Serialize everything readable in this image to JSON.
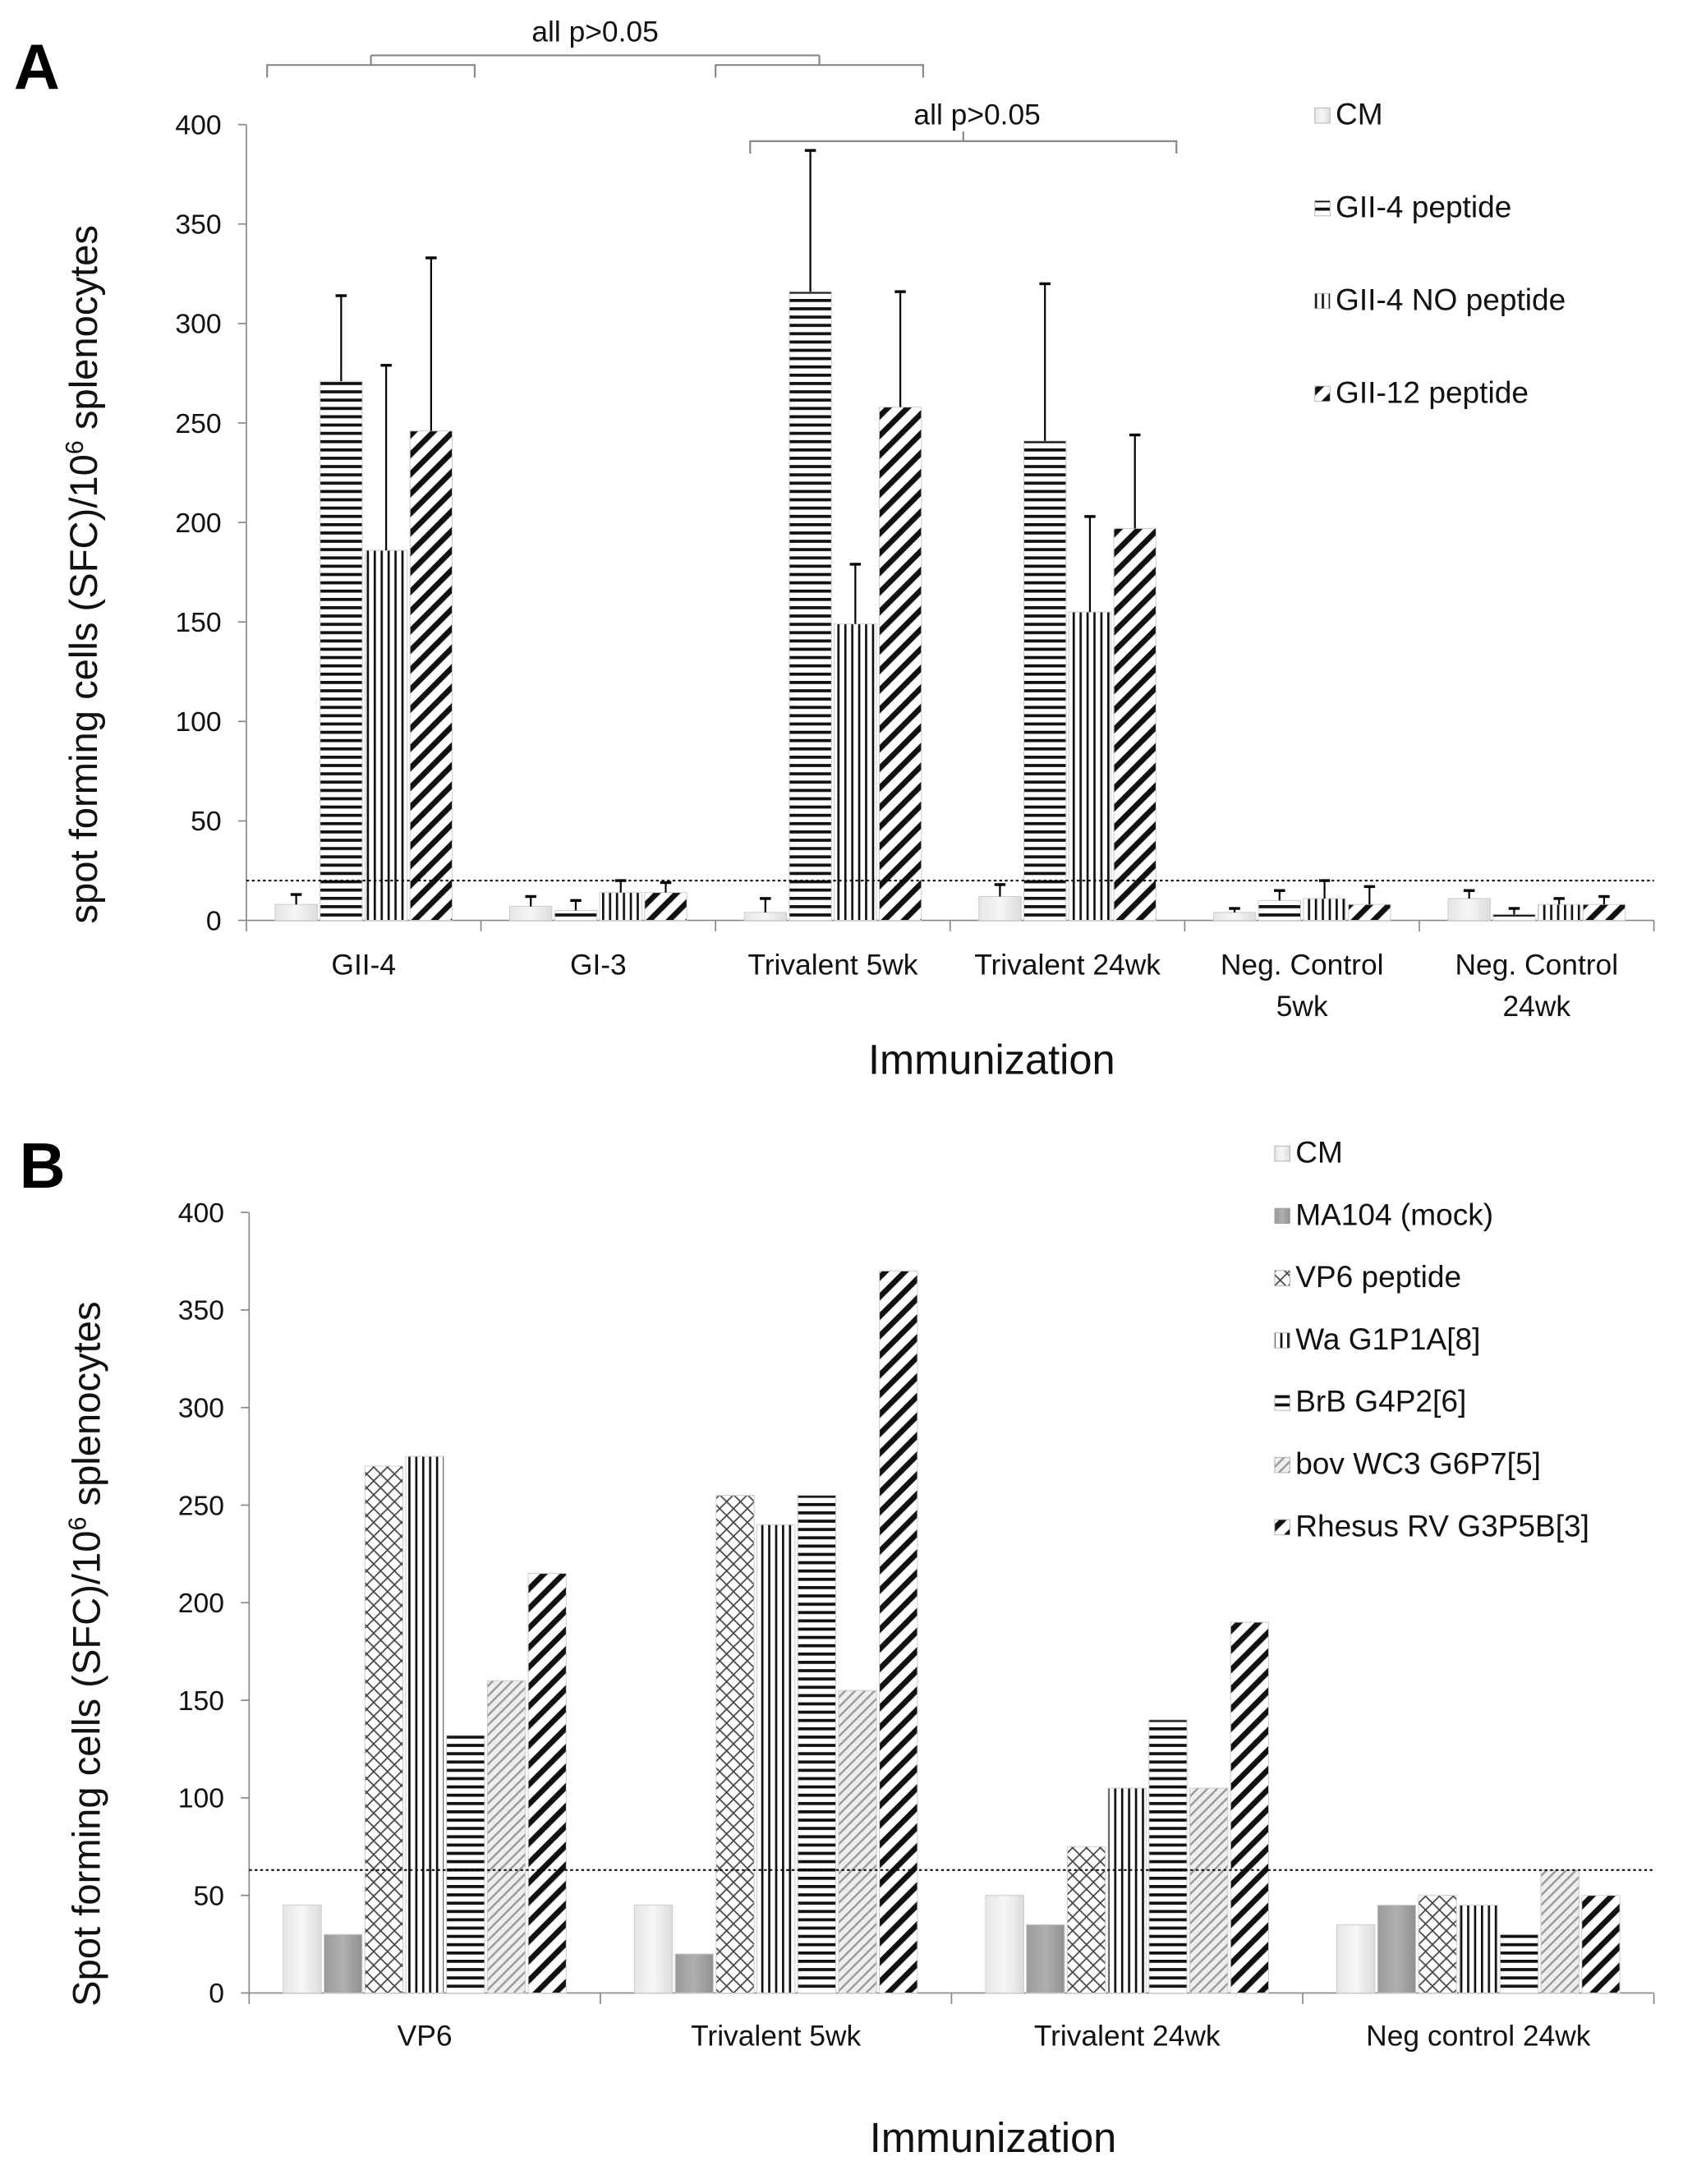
{
  "chart_data": [
    {
      "panel_label": "A",
      "type": "bar",
      "xlabel": "Immunization",
      "ylabel": "spot forming cells (SFC)/10",
      "ylabel_sup": "6",
      "ylabel_tail": " splenocytes",
      "ylim": [
        0,
        400
      ],
      "yticks": [
        0,
        50,
        100,
        150,
        200,
        250,
        300,
        350,
        400
      ],
      "grid": false,
      "legend_position": "top-right",
      "categories": [
        [
          "GII-4"
        ],
        [
          "GI-3"
        ],
        [
          "Trivalent 5wk"
        ],
        [
          "Trivalent 24wk"
        ],
        [
          "Neg. Control",
          "5wk"
        ],
        [
          "Neg. Control",
          "24wk"
        ]
      ],
      "threshold_line": 20,
      "series": [
        {
          "name": "CM",
          "pattern": "light-gray",
          "values": [
            8,
            7,
            4,
            12,
            4,
            11
          ],
          "error_upper": [
            13,
            12,
            11,
            18,
            6,
            15
          ]
        },
        {
          "name": "GII-4 peptide",
          "pattern": "horizontal-lines",
          "values": [
            271,
            5,
            316,
            241,
            10,
            3
          ],
          "error_upper": [
            314,
            10,
            387,
            320,
            15,
            6
          ]
        },
        {
          "name": "GII-4 NO peptide",
          "pattern": "vertical-lines",
          "values": [
            186,
            14,
            149,
            155,
            11,
            8
          ],
          "error_upper": [
            279,
            20,
            179,
            203,
            20,
            11
          ]
        },
        {
          "name": "GII-12 peptide",
          "pattern": "wide-diagonal",
          "values": [
            246,
            14,
            258,
            197,
            8,
            8
          ],
          "error_upper": [
            333,
            19,
            316,
            244,
            17,
            12
          ]
        }
      ],
      "annotations": [
        "all p>0.05",
        "all p>0.05"
      ]
    },
    {
      "panel_label": "B",
      "type": "bar",
      "xlabel": "Immunization",
      "ylabel": "Spot forming cells (SFC)/10",
      "ylabel_sup": "6",
      "ylabel_tail": " splenocytes",
      "ylim": [
        0,
        400
      ],
      "yticks": [
        0,
        50,
        100,
        150,
        200,
        250,
        300,
        350,
        400
      ],
      "grid": false,
      "legend_position": "top-right",
      "categories": [
        [
          "VP6"
        ],
        [
          "Trivalent 5wk"
        ],
        [
          "Trivalent 24wk"
        ],
        [
          "Neg control 24wk"
        ]
      ],
      "threshold_line": 63,
      "series": [
        {
          "name": "CM",
          "pattern": "light-gray",
          "values": [
            45,
            45,
            50,
            35
          ]
        },
        {
          "name": "MA104 (mock)",
          "pattern": "dark-gray",
          "values": [
            30,
            20,
            35,
            45
          ]
        },
        {
          "name": "VP6 peptide",
          "pattern": "crosshatch",
          "values": [
            270,
            255,
            75,
            50
          ]
        },
        {
          "name": "Wa G1P1A[8]",
          "pattern": "vertical-lines",
          "values": [
            275,
            240,
            105,
            45
          ]
        },
        {
          "name": "BrB G4P2[6]",
          "pattern": "horizontal-lines",
          "values": [
            132,
            255,
            140,
            30
          ]
        },
        {
          "name": "bov WC3 G6P7[5]",
          "pattern": "light-diagonal",
          "values": [
            160,
            155,
            105,
            63
          ]
        },
        {
          "name": "Rhesus RV G3P5B[3]",
          "pattern": "wide-diagonal",
          "values": [
            215,
            370,
            190,
            50
          ]
        }
      ]
    }
  ]
}
